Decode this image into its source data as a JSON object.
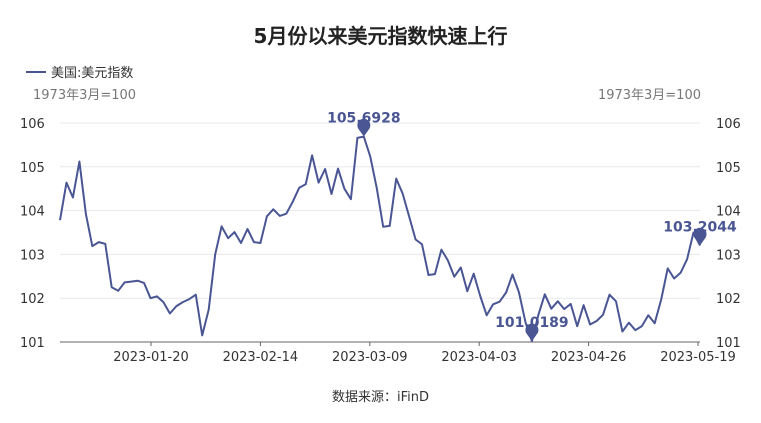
{
  "chart_data": {
    "type": "line",
    "title": "5月份以来美元指数快速上行",
    "source": "数据来源：iFinD",
    "unit_left": "1973年3月=100",
    "unit_right": "1973年3月=100",
    "y_ticks": [
      "101",
      "102",
      "103",
      "104",
      "105",
      "106"
    ],
    "ylim": [
      101,
      106
    ],
    "x_ticks": [
      "2023-01-20",
      "2023-02-14",
      "2023-03-09",
      "2023-04-03",
      "2023-04-26",
      "2023-05-19"
    ],
    "legend": "top-left",
    "color": "#4a5694",
    "grid": true,
    "series": [
      {
        "name": "美国:美元指数",
        "values": [
          103.78,
          104.64,
          104.3,
          105.12,
          103.92,
          103.19,
          103.28,
          103.24,
          102.25,
          102.17,
          102.36,
          102.38,
          102.4,
          102.35,
          102.0,
          102.04,
          101.91,
          101.65,
          101.82,
          101.91,
          101.98,
          102.08,
          101.15,
          101.74,
          103.0,
          103.64,
          103.37,
          103.51,
          103.26,
          103.58,
          103.28,
          103.26,
          103.87,
          104.03,
          103.88,
          103.93,
          104.2,
          104.52,
          104.6,
          105.26,
          104.64,
          104.95,
          104.38,
          104.96,
          104.5,
          104.26,
          105.66,
          105.69,
          105.23,
          104.51,
          103.63,
          103.65,
          104.73,
          104.39,
          103.87,
          103.34,
          103.23,
          102.53,
          102.55,
          103.11,
          102.86,
          102.49,
          102.7,
          102.16,
          102.56,
          102.05,
          101.61,
          101.86,
          101.92,
          102.13,
          102.54,
          102.13,
          101.45,
          101.02,
          101.62,
          102.09,
          101.76,
          101.93,
          101.75,
          101.87,
          101.36,
          101.84,
          101.4,
          101.48,
          101.62,
          102.08,
          101.93,
          101.24,
          101.44,
          101.27,
          101.36,
          101.61,
          101.43,
          101.97,
          102.68,
          102.45,
          102.58,
          102.89,
          103.5,
          103.2
        ]
      }
    ],
    "annotations": [
      {
        "label": "105.6928",
        "index": 47,
        "value": 105.6928
      },
      {
        "label": "101.0189",
        "index": 73,
        "value": 101.0189
      },
      {
        "label": "103.2044",
        "index": 99,
        "value": 103.2044
      }
    ]
  }
}
